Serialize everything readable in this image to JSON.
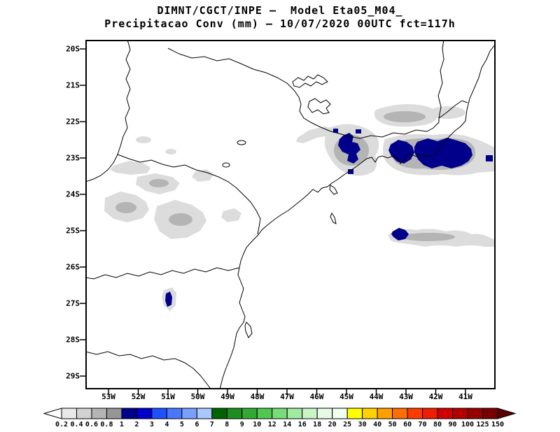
{
  "title": {
    "line1": "DIMNT/CGCT/INPE —  Model Eta05_M04_",
    "line2": "Precipitacao Conv (mm) — 10/07/2020 00UTC fct=117h"
  },
  "map": {
    "lat_labels": [
      "20S",
      "21S",
      "22S",
      "23S",
      "24S",
      "25S",
      "26S",
      "27S",
      "28S",
      "29S"
    ],
    "lon_labels": [
      "53W",
      "52W",
      "51W",
      "50W",
      "49W",
      "48W",
      "47W",
      "46W",
      "45W",
      "44W",
      "43W",
      "42W",
      "41W"
    ]
  },
  "map_colors": {
    "light_shading": "#dcdcdc",
    "medium_shading": "#b4b4b4",
    "heavy_shading": "#00008b"
  },
  "colorbar": {
    "labels": [
      "0.2",
      "0.4",
      "0.6",
      "0.8",
      "1",
      "2",
      "3",
      "4",
      "5",
      "6",
      "7",
      "8",
      "9",
      "10",
      "12",
      "14",
      "16",
      "18",
      "20",
      "25",
      "30",
      "40",
      "50",
      "60",
      "70",
      "80",
      "90",
      "100",
      "125",
      "150"
    ],
    "colors": [
      "#ffffff",
      "#e8e8e8",
      "#d2d2d2",
      "#b4b4b4",
      "#969696",
      "#00008b",
      "#0000cd",
      "#1e50ff",
      "#4878ff",
      "#78a0ff",
      "#a8c8ff",
      "#006400",
      "#1e8c1e",
      "#32aa32",
      "#50c850",
      "#78dc78",
      "#a0eba0",
      "#c8f5c8",
      "#e6fae6",
      "#f0fff0",
      "#ffff00",
      "#ffd200",
      "#ffa000",
      "#ff6e00",
      "#ff3c00",
      "#f01e00",
      "#d20000",
      "#b40000",
      "#960000",
      "#780000",
      "#5a0000"
    ]
  }
}
